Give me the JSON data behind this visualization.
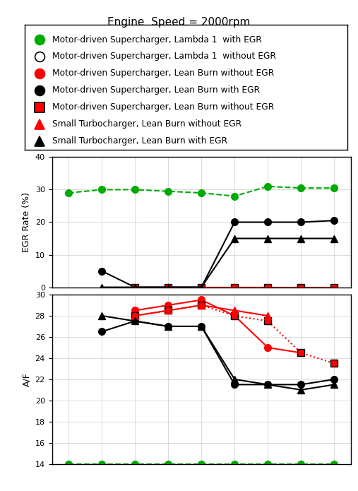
{
  "title": "Engine  Speed = 2000rpm",
  "legend_entries": [
    {
      "label": "Motor-driven Supercharger, Lambda 1  with EGR",
      "color": "#00aa00",
      "marker": "o",
      "mfc": "#00aa00",
      "mec": "#00aa00"
    },
    {
      "label": "Motor-driven Supercharger, Lambda 1  without EGR",
      "color": "black",
      "marker": "o",
      "mfc": "white",
      "mec": "black"
    },
    {
      "label": "Motor-driven Supercharger, Lean Burn without EGR",
      "color": "red",
      "marker": "o",
      "mfc": "red",
      "mec": "red"
    },
    {
      "label": "Motor-driven Supercharger, Lean Burn with EGR",
      "color": "black",
      "marker": "o",
      "mfc": "black",
      "mec": "black"
    },
    {
      "label": "Motor-driven Supercharger, Lean Burn without EGR",
      "color": "red",
      "marker": "s",
      "mfc": "red",
      "mec": "black"
    },
    {
      "label": "Small Turbocharger, Lean Burn without EGR",
      "color": "red",
      "marker": "^",
      "mfc": "red",
      "mec": "red"
    },
    {
      "label": "Small Turbocharger, Lean Burn with EGR",
      "color": "black",
      "marker": "^",
      "mfc": "black",
      "mec": "black"
    }
  ],
  "egr_ylim": [
    0,
    40
  ],
  "egr_yticks": [
    0,
    10,
    20,
    30,
    40
  ],
  "af_ylim": [
    14,
    30
  ],
  "af_yticks": [
    14,
    16,
    18,
    20,
    22,
    24,
    26,
    28,
    30
  ],
  "series": {
    "green_circle": {
      "x": [
        1,
        2,
        3,
        4,
        5,
        6,
        7,
        8,
        9
      ],
      "egr": [
        29,
        30,
        30,
        29.5,
        29,
        28,
        31,
        30.5,
        30.5
      ],
      "af": [
        14,
        14,
        14,
        14,
        14,
        14,
        14,
        14,
        14
      ],
      "color": "#00aa00",
      "marker": "o",
      "mfc": "#00aa00",
      "mec": "#00aa00",
      "egr_ls": "--",
      "af_ls": "--"
    },
    "black_circle": {
      "x": [
        2,
        3,
        4,
        5,
        6,
        7,
        8,
        9
      ],
      "egr": [
        5,
        0,
        0,
        0,
        20,
        20,
        20,
        20.5
      ],
      "af": [
        26.5,
        27.5,
        27,
        27,
        21.5,
        21.5,
        21.5,
        22
      ],
      "color": "black",
      "marker": "o",
      "mfc": "black",
      "mec": "black",
      "egr_ls": "-",
      "af_ls": "-"
    },
    "red_circle": {
      "x": [
        3,
        4,
        5,
        6,
        7,
        8
      ],
      "egr": [
        0,
        0,
        0,
        0,
        0,
        0
      ],
      "af": [
        28.5,
        29,
        29.5,
        28,
        25,
        24.5
      ],
      "color": "red",
      "marker": "o",
      "mfc": "red",
      "mec": "red",
      "egr_ls": "-",
      "af_ls": "-"
    },
    "red_square": {
      "x": [
        3,
        4,
        5,
        6,
        7,
        8,
        9
      ],
      "egr": [
        0,
        0,
        0,
        0,
        0,
        0,
        0
      ],
      "af": [
        28,
        28.5,
        29,
        28,
        27.5,
        24.5,
        23.5
      ],
      "color": "red",
      "marker": "s",
      "mfc": "red",
      "mec": "black",
      "egr_ls": "-",
      "af_ls": ":"
    },
    "red_triangle": {
      "x": [
        3,
        4,
        5,
        6,
        7
      ],
      "egr": [
        0,
        0,
        0,
        0,
        0
      ],
      "af": [
        28,
        28.5,
        29,
        28.5,
        28
      ],
      "color": "red",
      "marker": "^",
      "mfc": "red",
      "mec": "red",
      "egr_ls": "-",
      "af_ls": "-"
    },
    "black_triangle": {
      "x": [
        2,
        3,
        4,
        5,
        6,
        7,
        8,
        9
      ],
      "egr": [
        0,
        0,
        0,
        0,
        15,
        15,
        15,
        15
      ],
      "af": [
        28,
        27.5,
        27,
        27,
        22,
        21.5,
        21,
        21.5
      ],
      "color": "black",
      "marker": "^",
      "mfc": "black",
      "mec": "black",
      "egr_ls": "-",
      "af_ls": "-"
    }
  },
  "xlim": [
    0.5,
    9.5
  ]
}
